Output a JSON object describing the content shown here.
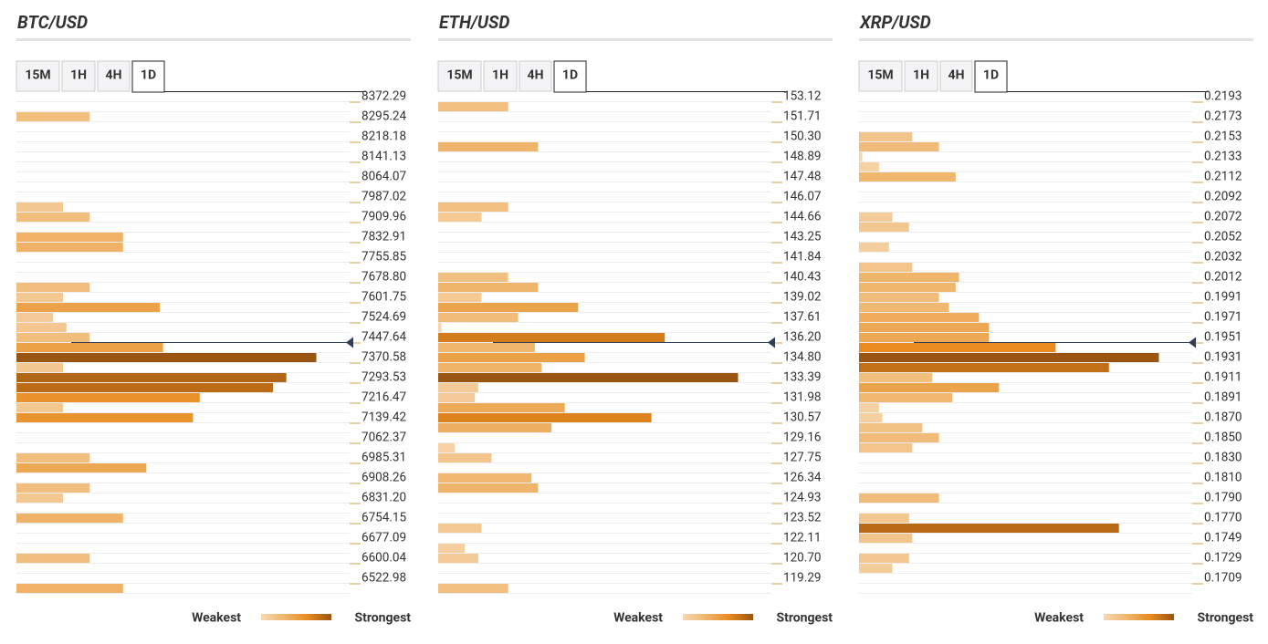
{
  "chart_data": [
    {
      "type": "bar",
      "orientation": "horizontal",
      "title": "BTC/USD",
      "tabs": [
        "15M",
        "1H",
        "4H",
        "1D"
      ],
      "active_tab": 3,
      "categories": [
        "8372.29",
        null,
        "8295.24",
        null,
        "8218.18",
        null,
        "8141.13",
        null,
        "8064.07",
        null,
        "7987.02",
        null,
        "7909.96",
        null,
        "7832.91",
        null,
        "7755.85",
        null,
        "7678.80",
        null,
        "7601.75",
        null,
        "7524.69",
        null,
        "7447.64",
        null,
        "7370.58",
        null,
        "7293.53",
        null,
        "7216.47",
        null,
        "7139.42",
        null,
        "7062.37",
        null,
        "6985.31",
        null,
        "6908.26",
        null,
        "6831.20",
        null,
        "6754.15",
        null,
        "6677.09",
        null,
        "6600.04",
        null,
        "6522.98",
        null
      ],
      "values": [
        null,
        null,
        22,
        null,
        null,
        null,
        null,
        null,
        null,
        null,
        null,
        14,
        22,
        null,
        32,
        32,
        null,
        null,
        null,
        22,
        14,
        43,
        11,
        15,
        22,
        44,
        90,
        14,
        81,
        77,
        55,
        14,
        53,
        null,
        null,
        null,
        22,
        39,
        null,
        22,
        14,
        null,
        32,
        null,
        null,
        null,
        22,
        null,
        null,
        32
      ],
      "xlim": [
        0,
        100
      ],
      "current_level": 24.5,
      "legend_low": "Weakest",
      "legend_high": "Strongest",
      "colors": [
        "#f7d8b2",
        "#efb56b",
        "#e88a1e",
        "#9a5512"
      ]
    },
    {
      "type": "bar",
      "orientation": "horizontal",
      "title": "ETH/USD",
      "tabs": [
        "15M",
        "1H",
        "4H",
        "1D"
      ],
      "active_tab": 3,
      "categories": [
        "153.12",
        null,
        "151.71",
        null,
        "150.30",
        null,
        "148.89",
        null,
        "147.48",
        null,
        "146.07",
        null,
        "144.66",
        null,
        "143.25",
        null,
        "141.84",
        null,
        "140.43",
        null,
        "139.02",
        null,
        "137.61",
        null,
        "136.20",
        null,
        "134.80",
        null,
        "133.39",
        null,
        "131.98",
        null,
        "130.57",
        null,
        "129.16",
        null,
        "127.75",
        null,
        "126.34",
        null,
        "124.93",
        null,
        "123.52",
        null,
        "122.11",
        null,
        "120.70",
        null,
        "119.29",
        null
      ],
      "values": [
        null,
        21,
        null,
        null,
        null,
        30,
        null,
        null,
        null,
        null,
        null,
        21,
        13,
        null,
        null,
        null,
        null,
        null,
        21,
        30,
        13,
        42,
        24,
        1,
        68,
        29,
        44,
        31,
        90,
        12,
        11,
        38,
        64,
        34,
        null,
        5,
        16,
        null,
        28,
        30,
        null,
        null,
        null,
        13,
        null,
        8,
        12,
        null,
        null,
        21
      ],
      "xlim": [
        0,
        100
      ],
      "current_level": 24.5,
      "legend_low": "Weakest",
      "legend_high": "Strongest",
      "colors": [
        "#f7d8b2",
        "#efb56b",
        "#e88a1e",
        "#9a5512"
      ]
    },
    {
      "type": "bar",
      "orientation": "horizontal",
      "title": "XRP/USD",
      "tabs": [
        "15M",
        "1H",
        "4H",
        "1D"
      ],
      "active_tab": 3,
      "categories": [
        "0.2193",
        null,
        "0.2173",
        null,
        "0.2153",
        null,
        "0.2133",
        null,
        "0.2112",
        null,
        "0.2092",
        null,
        "0.2072",
        null,
        "0.2052",
        null,
        "0.2032",
        null,
        "0.2012",
        null,
        "0.1991",
        null,
        "0.1971",
        null,
        "0.1951",
        null,
        "0.1931",
        null,
        "0.1911",
        null,
        "0.1891",
        null,
        "0.1870",
        null,
        "0.1850",
        null,
        "0.1830",
        null,
        "0.1810",
        null,
        "0.1790",
        null,
        "0.1770",
        null,
        "0.1749",
        null,
        "0.1729",
        null,
        "0.1709",
        null
      ],
      "values": [
        null,
        null,
        null,
        null,
        16,
        24,
        1,
        6,
        29,
        null,
        null,
        null,
        10,
        15,
        null,
        9,
        null,
        16,
        30,
        29,
        24,
        27,
        36,
        39,
        39,
        59,
        90,
        75,
        22,
        42,
        28,
        6,
        7,
        19,
        24,
        16,
        null,
        null,
        null,
        null,
        24,
        null,
        15,
        78,
        16,
        null,
        15,
        10,
        null,
        null
      ],
      "xlim": [
        0,
        100
      ],
      "current_level": 24.5,
      "legend_low": "Weakest",
      "legend_high": "Strongest",
      "colors": [
        "#f7d8b2",
        "#efb56b",
        "#e88a1e",
        "#9a5512"
      ]
    }
  ]
}
